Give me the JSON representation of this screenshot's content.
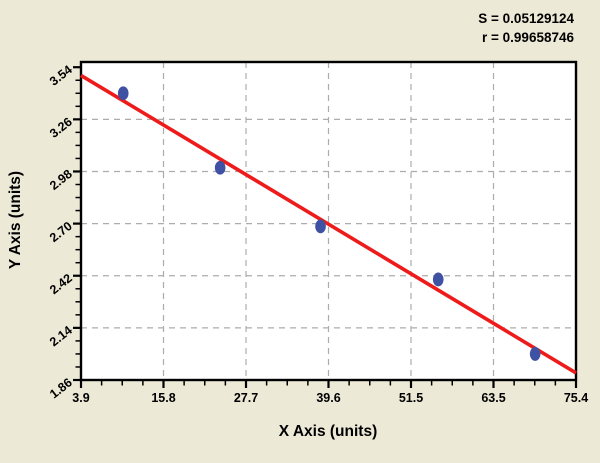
{
  "chart_data": {
    "type": "scatter",
    "title": "",
    "xlabel": "X Axis (units)",
    "ylabel": "Y Axis (units)",
    "annotations": [
      "S = 0.05129124",
      "r = 0.99658746"
    ],
    "stats": {
      "S": "0.05129124",
      "r": "0.99658746"
    },
    "x_ticks": [
      "3.9",
      "15.8",
      "27.7",
      "39.6",
      "51.5",
      "63.5",
      "75.4"
    ],
    "y_ticks": [
      "1.86",
      "2.14",
      "2.42",
      "2.70",
      "2.98",
      "3.26",
      "3.54"
    ],
    "xlim": [
      3.9,
      75.4
    ],
    "ylim": [
      1.86,
      3.568
    ],
    "minor_divisions_per_major": 4,
    "grid": "dashed gray at major ticks, both axes, interior only",
    "legend_position": "none",
    "points": [
      {
        "x": 10.0,
        "y": 3.4
      },
      {
        "x": 24.0,
        "y": 3.0
      },
      {
        "x": 38.5,
        "y": 2.685
      },
      {
        "x": 55.5,
        "y": 2.4
      },
      {
        "x": 69.5,
        "y": 2.0
      }
    ],
    "regression_line": {
      "x1": 3.9,
      "y1": 3.496,
      "x2": 75.4,
      "y2": 1.898
    },
    "colors": {
      "background": "#ECE9D6",
      "plot_background": "#FFFFFF",
      "axis": "#000000",
      "grid": "#ACACAC",
      "regression_line": "#EE1B1B",
      "point": "#3F51A3",
      "text": "#000000"
    }
  }
}
